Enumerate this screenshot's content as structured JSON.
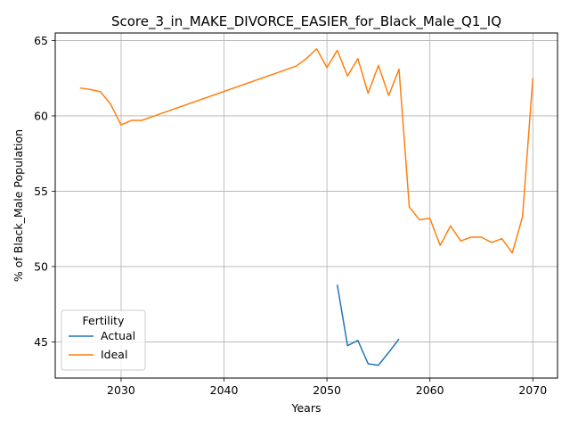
{
  "chart_data": {
    "type": "line",
    "title": "Score_3_in_MAKE_DIVORCE_EASIER_for_Black_Male_Q1_IQ",
    "xlabel": "Years",
    "ylabel": "% of Black_Male Population",
    "xlim": [
      2023.6,
      2072.4
    ],
    "ylim": [
      42.6,
      65.5
    ],
    "xticks": [
      2030,
      2040,
      2050,
      2060,
      2070
    ],
    "yticks": [
      45,
      50,
      55,
      60,
      65
    ],
    "grid": true,
    "legend": {
      "title": "Fertility",
      "position": "lower-left"
    },
    "series": [
      {
        "name": "Actual",
        "color": "#1f77b4",
        "x": [
          2051,
          2052,
          2053,
          2054,
          2055,
          2056,
          2057
        ],
        "y": [
          48.8,
          44.75,
          45.1,
          43.55,
          43.45,
          44.3,
          45.2
        ]
      },
      {
        "name": "Ideal",
        "color": "#ff7f0e",
        "x": [
          2026,
          2027,
          2028,
          2029,
          2030,
          2031,
          2032,
          2047,
          2048,
          2049,
          2050,
          2051,
          2052,
          2053,
          2054,
          2055,
          2056,
          2057,
          2058,
          2059,
          2060,
          2061,
          2062,
          2063,
          2064,
          2065,
          2066,
          2067,
          2068,
          2069,
          2070
        ],
        "y": [
          61.85,
          61.75,
          61.6,
          60.75,
          59.4,
          59.7,
          59.7,
          63.3,
          63.8,
          64.45,
          63.2,
          64.35,
          62.65,
          63.8,
          61.5,
          63.35,
          61.35,
          63.1,
          53.95,
          53.1,
          53.2,
          51.4,
          52.7,
          51.7,
          51.95,
          51.95,
          51.6,
          51.85,
          50.9,
          53.3,
          62.5
        ]
      }
    ]
  }
}
